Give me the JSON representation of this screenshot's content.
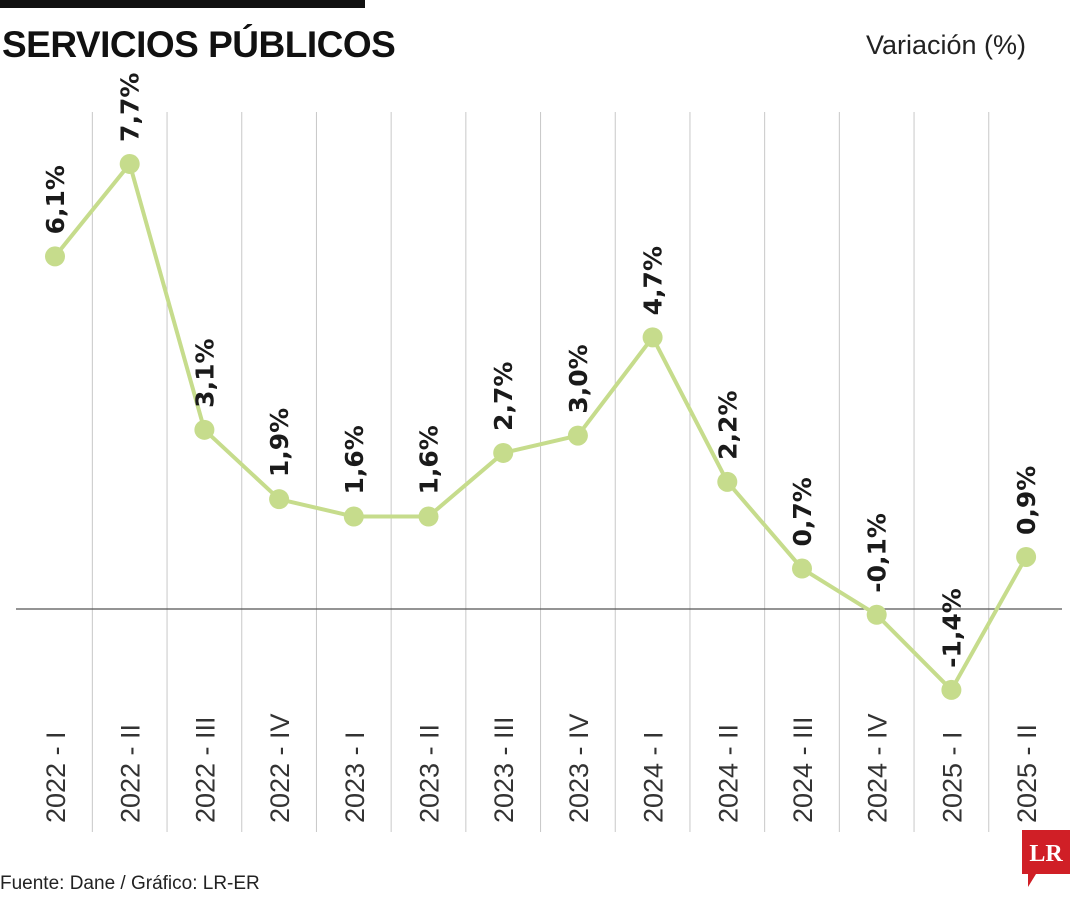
{
  "title": "SERVICIOS PÚBLICOS",
  "unit_label": "Variación (%)",
  "source": "Fuente: Dane / Gráfico: LR-ER",
  "logo_text": "LR",
  "colors": {
    "line": "#c6dc8c",
    "marker": "#c6dc8c",
    "grid": "#c8c8c8",
    "zero_line": "#555555",
    "logo": "#d01f26",
    "text": "#1a1a1a"
  },
  "chart_data": {
    "type": "line",
    "title": "SERVICIOS PÚBLICOS",
    "ylabel": "Variación (%)",
    "xlabel": "",
    "categories": [
      "2022 - I",
      "2022 - II",
      "2022 - III",
      "2022 - IV",
      "2023 - I",
      "2023 - II",
      "2023 - III",
      "2023 - IV",
      "2024 - I",
      "2024 - II",
      "2024 - III",
      "2024 - IV",
      "2025 - I",
      "2025 - II"
    ],
    "series": [
      {
        "values": [
          6.1,
          7.7,
          3.1,
          1.9,
          1.6,
          1.6,
          2.7,
          3.0,
          4.7,
          2.2,
          0.7,
          -0.1,
          -1.4,
          0.9
        ],
        "labels": [
          "6,1%",
          "7,7%",
          "3,1%",
          "1,9%",
          "1,6%",
          "1,6%",
          "2,7%",
          "3,0%",
          "4,7%",
          "2,2%",
          "0,7%",
          "-0,1%",
          "-1,4%",
          "0,9%"
        ]
      }
    ],
    "ylim": [
      -1.4,
      7.7
    ],
    "grid": "vertical",
    "zero_line": true
  }
}
